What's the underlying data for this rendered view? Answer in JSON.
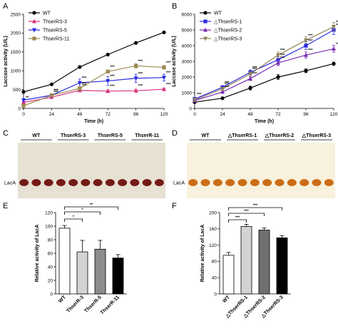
{
  "panels": {
    "A": "A",
    "B": "B",
    "C": "C",
    "D": "D",
    "E": "E",
    "F": "F"
  },
  "gels": {
    "C": {
      "headers": [
        "WT",
        "ThserRS-3",
        "ThserRS-5",
        "ThserR-11"
      ],
      "row_label": "LacA",
      "bg": "#e7e1d3",
      "band": "#6e0f0c"
    },
    "D": {
      "headers": [
        "WT",
        "△ThserRS-1",
        "△ThserRS-2",
        "△ThserRS-3"
      ],
      "row_label": "LacA",
      "bg": "#f7f1dd",
      "band": "#c8650b"
    }
  },
  "chart_data": [
    {
      "panel": "A",
      "type": "line",
      "xlabel": "Time (h)",
      "ylabel": "Laccase activity (U/L)",
      "x": [
        0,
        24,
        48,
        72,
        96,
        120
      ],
      "xlim": [
        0,
        120
      ],
      "ylim": [
        0,
        2500
      ],
      "xticks": [
        "0",
        "24",
        "48",
        "72",
        "96",
        "120"
      ],
      "yticks": [
        "0",
        "500",
        "1000",
        "1500",
        "2000",
        "2500"
      ],
      "legend_position": "top-left",
      "series": [
        {
          "name": "WT",
          "color": "#000000",
          "marker": "circle",
          "values": [
            440,
            640,
            1100,
            1430,
            1740,
            2020
          ]
        },
        {
          "name": "ThserRS-3",
          "color": "#d9307f",
          "marker": "triangle-up",
          "values": [
            160,
            300,
            480,
            460,
            470,
            510
          ],
          "err": [
            20,
            20,
            40,
            40,
            40,
            30
          ]
        },
        {
          "name": "ThserRS-5",
          "color": "#2a2ce0",
          "marker": "triangle-down",
          "values": [
            220,
            350,
            680,
            730,
            800,
            820
          ],
          "err": [
            30,
            40,
            100,
            120,
            110,
            90
          ]
        },
        {
          "name": "ThserRS-11",
          "color": "#9b8a52",
          "marker": "square",
          "values": [
            70,
            350,
            530,
            980,
            1130,
            1090
          ],
          "err": [
            20,
            30,
            50,
            40,
            60,
            50
          ]
        }
      ],
      "sig": [
        "**",
        "***",
        "***",
        "***",
        "***",
        "***"
      ]
    },
    {
      "panel": "B",
      "type": "line",
      "xlabel": "Time (h)",
      "ylabel": "Laccase activity (U/L)",
      "x": [
        0,
        24,
        48,
        72,
        96,
        120
      ],
      "xlim": [
        0,
        120
      ],
      "ylim": [
        0,
        6000
      ],
      "xticks": [
        "0",
        "24",
        "48",
        "72",
        "96",
        "120"
      ],
      "yticks": [
        "0",
        "1000",
        "2000",
        "3000",
        "4000",
        "5000",
        "6000"
      ],
      "legend_position": "top-left",
      "series": [
        {
          "name": "WT",
          "color": "#000000",
          "marker": "circle",
          "values": [
            400,
            650,
            1300,
            2000,
            2400,
            2850
          ],
          "err": [
            40,
            60,
            120,
            150,
            120,
            100
          ]
        },
        {
          "name": "△ThserRS-1",
          "color": "#2a2ce0",
          "marker": "square",
          "values": [
            600,
            1350,
            2300,
            3100,
            4000,
            5000
          ],
          "err": [
            60,
            100,
            150,
            200,
            250,
            300
          ]
        },
        {
          "name": "△ThserRS-2",
          "color": "#7b2fb5",
          "marker": "triangle-up",
          "values": [
            500,
            1050,
            1900,
            2900,
            3400,
            3800
          ],
          "err": [
            50,
            80,
            120,
            180,
            200,
            220
          ]
        },
        {
          "name": "△ThserRS-3",
          "color": "#8f8357",
          "marker": "triangle-down",
          "values": [
            550,
            1250,
            2200,
            3400,
            4350,
            5200
          ],
          "err": [
            60,
            100,
            150,
            200,
            220,
            280
          ]
        }
      ],
      "sig": [
        "***",
        "***",
        "***",
        "***",
        "***",
        "***"
      ]
    },
    {
      "panel": "E",
      "type": "bar",
      "ylabel": "Relative activity of LacA",
      "categories": [
        "WT",
        "ThserR-3",
        "ThserR-5",
        "ThserR-11"
      ],
      "values": [
        97,
        62,
        66,
        53
      ],
      "err": [
        4,
        17,
        13,
        5
      ],
      "colors": [
        "#ffffff",
        "#d3d3d3",
        "#8c8c8c",
        "#000000"
      ],
      "ylim": [
        0,
        120
      ],
      "yticks": [
        "0",
        "20",
        "40",
        "60",
        "80",
        "100",
        "120"
      ],
      "sig": [
        "*",
        "*",
        "**"
      ]
    },
    {
      "panel": "F",
      "type": "bar",
      "ylabel": "Relative activity of LacA",
      "categories": [
        "WT",
        "△ThserRS-1",
        "△ThserRS-2",
        "△ThserRS-3"
      ],
      "values": [
        95,
        166,
        157,
        138
      ],
      "err": [
        7,
        5,
        5,
        5
      ],
      "colors": [
        "#ffffff",
        "#d3d3d3",
        "#6f6f6f",
        "#000000"
      ],
      "ylim": [
        0,
        200
      ],
      "yticks": [
        "0",
        "40",
        "80",
        "120",
        "160",
        "200"
      ],
      "sig": [
        "***",
        "***",
        "***"
      ]
    }
  ]
}
